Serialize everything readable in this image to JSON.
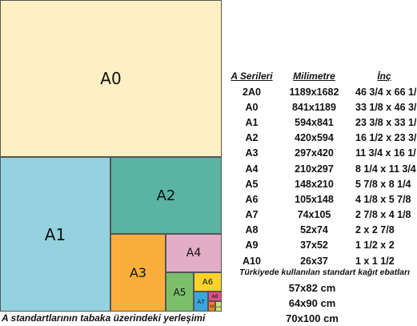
{
  "diagram": {
    "sheets": [
      {
        "id": "a0",
        "label": "A0"
      },
      {
        "id": "a1",
        "label": "A1"
      },
      {
        "id": "a2",
        "label": "A2"
      },
      {
        "id": "a3",
        "label": "A3"
      },
      {
        "id": "a4",
        "label": "A4"
      },
      {
        "id": "a5",
        "label": "A5"
      },
      {
        "id": "a6",
        "label": "A6"
      },
      {
        "id": "a7",
        "label": "A7"
      },
      {
        "id": "a8",
        "label": "A8"
      },
      {
        "id": "a9",
        "label": "A9"
      },
      {
        "id": "a10",
        "label": "A10"
      }
    ],
    "caption": "A standartlarının tabaka üzerindeki yerleşimi"
  },
  "table": {
    "headers": [
      "A Serileri",
      "Milimetre",
      "İnç"
    ],
    "rows": [
      {
        "series": "2A0",
        "mm": "1189x1682",
        "inch": "46 3/4 x 66 1/"
      },
      {
        "series": "A0",
        "mm": "841x1189",
        "inch": "33 1/8 x 46 3/"
      },
      {
        "series": "A1",
        "mm": "594x841",
        "inch": "23 3/8 x 33 1/"
      },
      {
        "series": "A2",
        "mm": "420x594",
        "inch": "16 1/2 x 23 3/"
      },
      {
        "series": "A3",
        "mm": "297x420",
        "inch": "11 3/4 x 16 1/"
      },
      {
        "series": "A4",
        "mm": "210x297",
        "inch": "8 1/4 x 11 3/4"
      },
      {
        "series": "A5",
        "mm": "148x210",
        "inch": "5 7/8 x 8 1/4"
      },
      {
        "series": "A6",
        "mm": "105x148",
        "inch": "4 1/8 x 5 7/8"
      },
      {
        "series": "A7",
        "mm": "74x105",
        "inch": "2 7/8 x 4 1/8"
      },
      {
        "series": "A8",
        "mm": "52x74",
        "inch": "2 x 2 7/8"
      },
      {
        "series": "A9",
        "mm": "37x52",
        "inch": "1 1/2 x 2"
      },
      {
        "series": "A10",
        "mm": "26x37",
        "inch": "1 x 1 1/2"
      }
    ]
  },
  "turkey": {
    "title": "Türkiyede kullanılan standart kağıt ebatları",
    "sizes": [
      "57x82 cm",
      "64x90 cm",
      "70x100 cm"
    ]
  }
}
